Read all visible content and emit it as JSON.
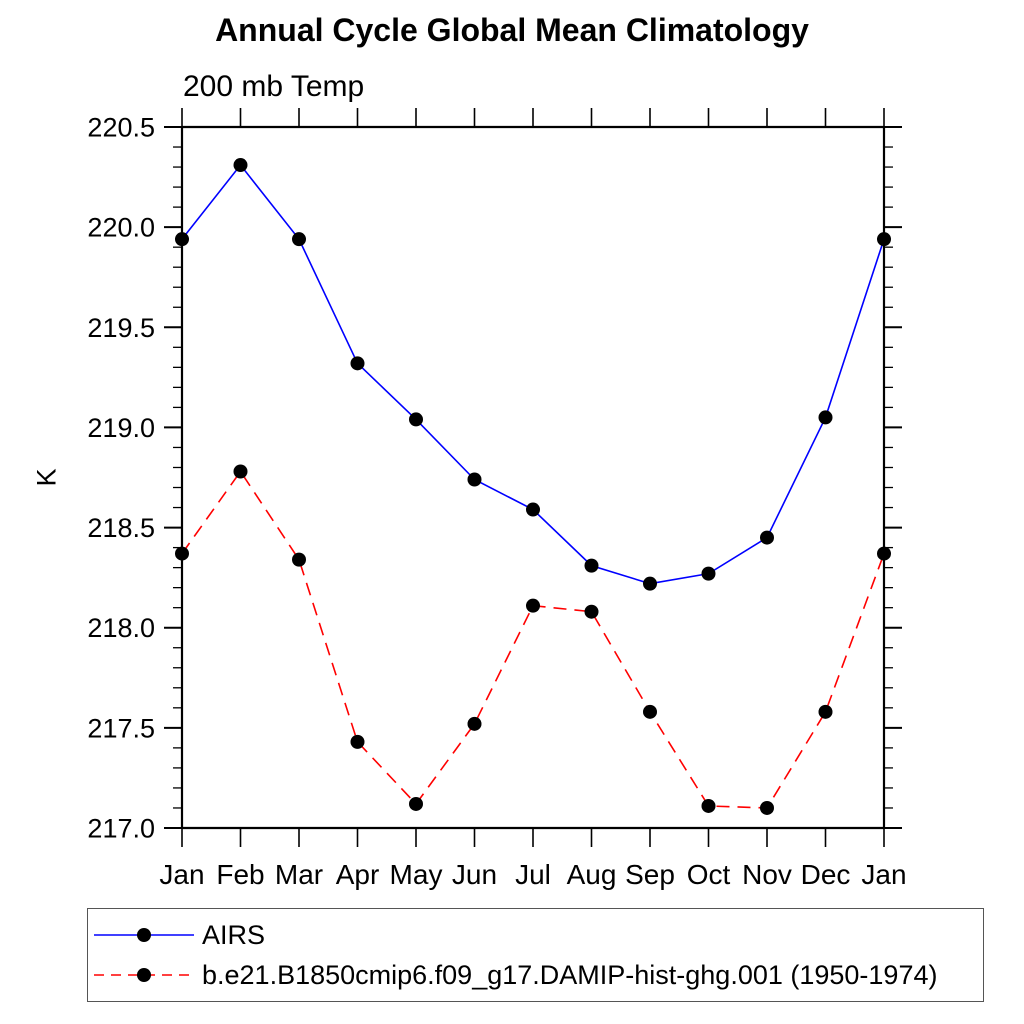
{
  "title": "Annual Cycle Global Mean Climatology",
  "subtitle": "200 mb Temp",
  "chart_data": {
    "type": "line",
    "title": "Annual Cycle Global Mean Climatology",
    "subtitle": "200 mb Temp",
    "xlabel": "",
    "ylabel": "K",
    "categories": [
      "Jan",
      "Feb",
      "Mar",
      "Apr",
      "May",
      "Jun",
      "Jul",
      "Aug",
      "Sep",
      "Oct",
      "Nov",
      "Dec",
      "Jan"
    ],
    "ylim": [
      217.0,
      220.5
    ],
    "ytick_major": 0.5,
    "ytick_minor": 0.1,
    "grid": false,
    "legend_position": "bottom-left",
    "marker": "filled-circle",
    "marker_color": "#000000",
    "axis_color": "#000000",
    "series": [
      {
        "name": "AIRS",
        "color": "#0000ff",
        "line_style": "solid",
        "values": [
          219.94,
          220.31,
          219.94,
          219.32,
          219.04,
          218.74,
          218.59,
          218.31,
          218.22,
          218.27,
          218.45,
          219.05,
          219.94
        ]
      },
      {
        "name": "b.e21.B1850cmip6.f09_g17.DAMIP-hist-ghg.001 (1950-1974)",
        "color": "#ff0000",
        "line_style": "dashed",
        "values": [
          218.37,
          218.78,
          218.34,
          217.43,
          217.12,
          217.52,
          218.11,
          218.08,
          217.58,
          217.11,
          217.1,
          217.58,
          218.37
        ]
      }
    ]
  }
}
